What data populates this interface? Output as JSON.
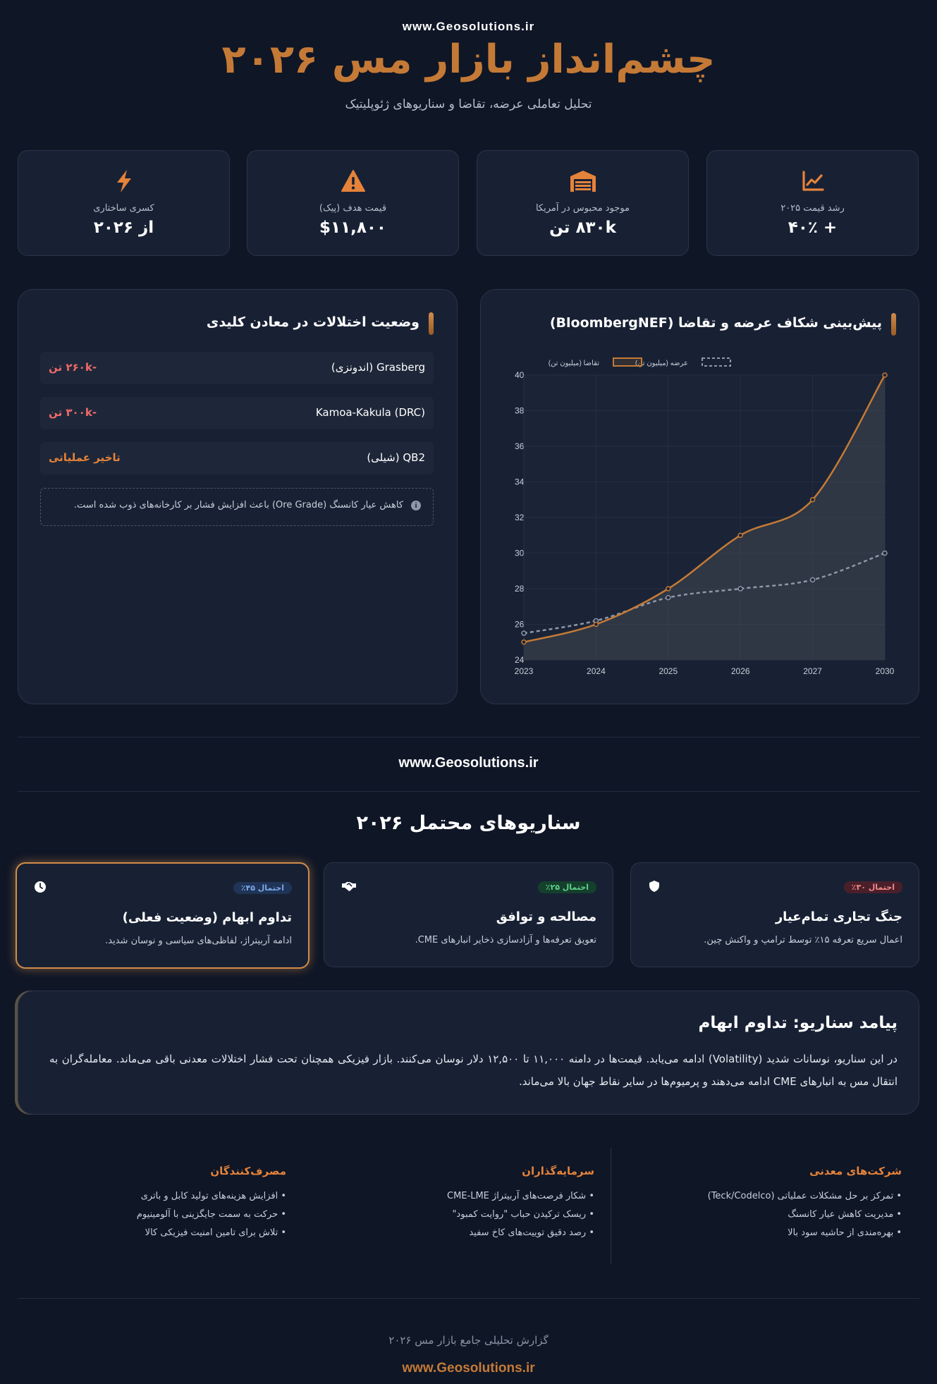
{
  "header": {
    "site_top": "www.Geosolutions.ir",
    "title": "چشم‌انداز بازار مس ۲۰۲۶",
    "subtitle": "تحلیل تعاملی عرضه، تقاضا و سناریوهای ژئوپلیتیک"
  },
  "kpis": [
    {
      "label": "رشد قیمت ۲۰۲۵",
      "value": "+ ۴۰٪",
      "icon": "chart-line-icon"
    },
    {
      "label": "موجود محبوس در آمریکا",
      "value": "۸۳۰k تن",
      "icon": "warehouse-icon"
    },
    {
      "label": "قیمت هدف (پیک)",
      "value": "$۱۱,۸۰۰",
      "icon": "warning-icon"
    },
    {
      "label": "کسری ساختاری",
      "value": "از ۲۰۲۶",
      "icon": "bolt-icon"
    }
  ],
  "chart_panel": {
    "title": "پیش‌بینی شکاف عرضه و تقاضا (BloombergNEF)"
  },
  "chart_data": {
    "type": "line",
    "x": [
      "2023",
      "2024",
      "2025",
      "2026",
      "2027",
      "2030"
    ],
    "series": [
      {
        "name": "عرضه (میلیون تن)",
        "values": [
          25.5,
          26.2,
          27.5,
          28.0,
          28.5,
          30.0
        ],
        "color": "#8e98a8",
        "style": "dashed"
      },
      {
        "name": "تقاضا (میلیون تن)",
        "values": [
          25.0,
          26.0,
          28.0,
          31.0,
          33.0,
          40.0
        ],
        "color": "#c47a36",
        "style": "solid-filled"
      }
    ],
    "y_ticks": [
      "24",
      "26",
      "28",
      "30",
      "32",
      "34",
      "36",
      "38",
      "40"
    ],
    "ylim": [
      24,
      40
    ],
    "grid": true,
    "legend_position": "top"
  },
  "mines_panel": {
    "title": "وضعیت اختلالات در معادن کلیدی",
    "rows": [
      {
        "name": "Grasberg (اندونزی)",
        "status": "-۲۶۰k تن",
        "color": "#f06a6a"
      },
      {
        "name": "Kamoa-Kakula (DRC)",
        "status": "-۳۰۰k تن",
        "color": "#f06a6a"
      },
      {
        "name": "QB2 (شیلی)",
        "status": "تاخیر عملیاتی",
        "color": "#e5833a"
      }
    ],
    "note": "کاهش عیار کانسنگ (Ore Grade) باعث افزایش فشار بر کارخانه‌های ذوب شده است.",
    "note_icon": "i"
  },
  "mid_site": "www.Geosolutions.ir",
  "scenarios": {
    "title": "سناریوهای محتمل ۲۰۲۶",
    "cards": [
      {
        "badge": "احتمال ۳۰٪",
        "title": "جنگ تجاری تمام‌عیار",
        "desc": "اعمال سریع تعرفه ۱۵٪ توسط ترامپ و واکنش چین.",
        "icon": "shield-icon"
      },
      {
        "badge": "احتمال ۲۵٪",
        "title": "مصالحه و توافق",
        "desc": "تعویق تعرفه‌ها و آزادسازی ذخایر انبارهای CME.",
        "icon": "handshake-icon"
      },
      {
        "badge": "احتمال ۴۵٪",
        "title": "تداوم ابهام (وضعیت فعلی)",
        "desc": "ادامه آربیتراژ، لفاظی‌های سیاسی و نوسان شدید.",
        "icon": "clock-icon"
      }
    ]
  },
  "outcome": {
    "title": "پیامد سناریو: تداوم ابهام",
    "body": "در این سناریو، نوسانات شدید (Volatility) ادامه می‌یابد. قیمت‌ها در دامنه ۱۱,۰۰۰ تا ۱۲,۵۰۰ دلار نوسان می‌کنند. بازار فیزیکی همچنان تحت فشار اختلالات معدنی باقی می‌ماند. معامله‌گران به انتقال مس به انبارهای CME ادامه می‌دهند و پرمیوم‌ها در سایر نقاط جهان بالا می‌ماند."
  },
  "stakeholders": [
    {
      "title": "شرکت‌های معدنی",
      "items": [
        "• تمرکز بر حل مشکلات عملیاتی (Teck/Codelco)",
        "• مدیریت کاهش عیار کانسنگ",
        "• بهره‌مندی از حاشیه سود بالا"
      ]
    },
    {
      "title": "سرمایه‌گذاران",
      "items": [
        "• شکار فرصت‌های آربیتراژ CME-LME",
        "• ریسک ترکیدن حباب \"روایت کمبود\"",
        "• رصد دقیق توییت‌های کاخ سفید"
      ]
    },
    {
      "title": "مصرف‌کنندگان",
      "items": [
        "• افزایش هزینه‌های تولید کابل و باتری",
        "• حرکت به سمت جایگزینی با آلومینیوم",
        "• تلاش برای تامین امنیت فیزیکی کالا"
      ]
    }
  ],
  "footer": {
    "note": "گزارش تحلیلی جامع بازار مس ۲۰۲۶",
    "site": "www.Geosolutions.ir"
  }
}
